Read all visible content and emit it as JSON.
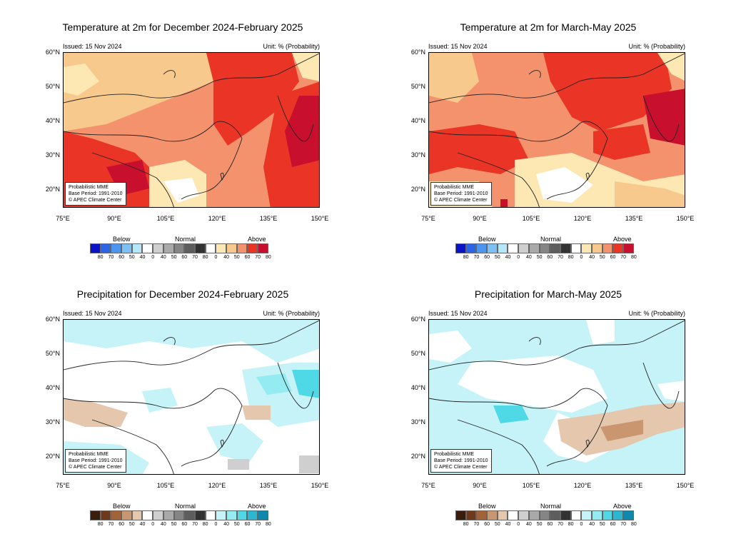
{
  "axes": {
    "lat_labels": [
      "60°N",
      "50°N",
      "40°N",
      "30°N",
      "20°N"
    ],
    "lon_labels": [
      "75°E",
      "90°E",
      "105°E",
      "120°E",
      "135°E",
      "150°E"
    ]
  },
  "common": {
    "issued": "Issued: 15 Nov 2024",
    "unit": "Unit: % (Probability)",
    "info_lines": [
      "Probabilistic MME",
      "Base Period: 1991-2010",
      "© APEC Climate Center"
    ],
    "legend_headers": {
      "below": "Below",
      "normal": "Normal",
      "above": "Above"
    },
    "legend_ticks": [
      "80",
      "70",
      "60",
      "50",
      "40",
      "0",
      "40",
      "50",
      "60",
      "70",
      "80",
      "0",
      "40",
      "50",
      "60",
      "70",
      "80"
    ]
  },
  "panels": [
    {
      "title": "Temperature at 2m for December 2024-February 2025",
      "variable": "temperature",
      "colors": {
        "below": [
          "#0b13c9",
          "#2c64e8",
          "#4c96f0",
          "#7cc0f5",
          "#b7e6fb"
        ],
        "normal": [
          "#ffffff",
          "#cfcfcf",
          "#a9a9a9",
          "#858585",
          "#5d5d5d",
          "#333333"
        ],
        "above": [
          "#ffffff",
          "#fde8b4",
          "#f8c98c",
          "#f3926d",
          "#ea3426",
          "#c8102e"
        ]
      }
    },
    {
      "title": "Temperature at 2m for March-May 2025",
      "variable": "temperature",
      "colors": {
        "below": [
          "#0b13c9",
          "#2c64e8",
          "#4c96f0",
          "#7cc0f5",
          "#b7e6fb"
        ],
        "normal": [
          "#ffffff",
          "#cfcfcf",
          "#a9a9a9",
          "#858585",
          "#5d5d5d",
          "#333333"
        ],
        "above": [
          "#ffffff",
          "#fde8b4",
          "#f8c98c",
          "#f3926d",
          "#ea3426",
          "#c8102e"
        ]
      }
    },
    {
      "title": "Precipitation for December 2024-February 2025",
      "variable": "precipitation",
      "colors": {
        "below": [
          "#3a1d0c",
          "#6e3a1b",
          "#a36338",
          "#c99670",
          "#e4c7ad"
        ],
        "normal": [
          "#ffffff",
          "#cfcfcf",
          "#a9a9a9",
          "#858585",
          "#5d5d5d",
          "#333333"
        ],
        "above": [
          "#ffffff",
          "#c6f3f7",
          "#94ebf1",
          "#4fd8e6",
          "#2bb6d2",
          "#0e88ad"
        ]
      }
    },
    {
      "title": "Precipitation for March-May 2025",
      "variable": "precipitation",
      "colors": {
        "below": [
          "#3a1d0c",
          "#6e3a1b",
          "#a36338",
          "#c99670",
          "#e4c7ad"
        ],
        "normal": [
          "#ffffff",
          "#cfcfcf",
          "#a9a9a9",
          "#858585",
          "#5d5d5d",
          "#333333"
        ],
        "above": [
          "#ffffff",
          "#c6f3f7",
          "#94ebf1",
          "#4fd8e6",
          "#2bb6d2",
          "#0e88ad"
        ]
      }
    }
  ]
}
